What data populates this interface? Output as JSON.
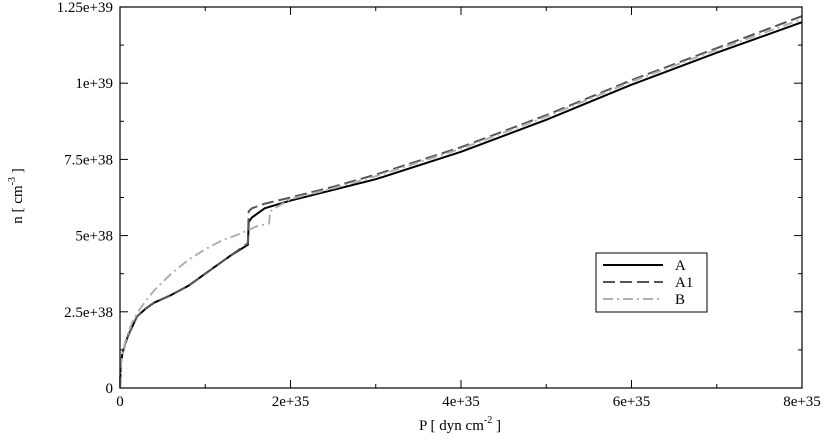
{
  "chart_data": {
    "type": "line",
    "title": "",
    "xlabel": {
      "prefix": "P [ dyn cm",
      "sup": "-2",
      "suffix": " ]"
    },
    "ylabel": {
      "prefix": "n [ cm",
      "sup": "-3",
      "suffix": " ]"
    },
    "xlim": [
      0,
      8e+35
    ],
    "ylim": [
      0,
      1.25e+39
    ],
    "x_ticks": [
      {
        "value": 0,
        "label": "0"
      },
      {
        "value": 2e+35,
        "label": "2e+35"
      },
      {
        "value": 4e+35,
        "label": "4e+35"
      },
      {
        "value": 6e+35,
        "label": "6e+35"
      },
      {
        "value": 8e+35,
        "label": "8e+35"
      }
    ],
    "y_ticks": [
      {
        "value": 0,
        "label": "0"
      },
      {
        "value": 2.5e+38,
        "label": "2.5e+38"
      },
      {
        "value": 5e+38,
        "label": "5e+38"
      },
      {
        "value": 7.5e+38,
        "label": "7.5e+38"
      },
      {
        "value": 1e+39,
        "label": "1e+39"
      },
      {
        "value": 1.25e+39,
        "label": "1.25e+39"
      }
    ],
    "grid": false,
    "legend_position": "right-middle",
    "series": [
      {
        "name": "A",
        "color": "#000000",
        "dash": "solid",
        "points": [
          [
            0,
            0
          ],
          [
            1e+33,
            8e+37
          ],
          [
            3e+33,
            1.15e+38
          ],
          [
            6e+33,
            1.45e+38
          ],
          [
            1e+34,
            1.75e+38
          ],
          [
            1.5e+34,
            2.05e+38
          ],
          [
            2e+34,
            2.35e+38
          ],
          [
            3e+34,
            2.6e+38
          ],
          [
            4e+34,
            2.8e+38
          ],
          [
            6e+34,
            3.05e+38
          ],
          [
            8e+34,
            3.35e+38
          ],
          [
            1.1e+35,
            3.95e+38
          ],
          [
            1.3e+35,
            4.35e+38
          ],
          [
            1.5e+35,
            4.7e+38
          ],
          [
            1.51e+35,
            5.45e+38
          ],
          [
            1.55e+35,
            5.6e+38
          ],
          [
            1.7e+35,
            5.9e+38
          ],
          [
            2e+35,
            6.15e+38
          ],
          [
            2.5e+35,
            6.5e+38
          ],
          [
            3e+35,
            6.85e+38
          ],
          [
            4e+35,
            7.75e+38
          ],
          [
            5e+35,
            8.8e+38
          ],
          [
            6e+35,
            9.95e+38
          ],
          [
            7e+35,
            1.1e+39
          ],
          [
            8e+35,
            1.2e+39
          ]
        ]
      },
      {
        "name": "A1",
        "color": "#555555",
        "dash": "dashed",
        "points": [
          [
            0,
            0
          ],
          [
            1e+33,
            8e+37
          ],
          [
            3e+33,
            1.15e+38
          ],
          [
            6e+33,
            1.45e+38
          ],
          [
            1e+34,
            1.75e+38
          ],
          [
            1.5e+34,
            2.05e+38
          ],
          [
            2e+34,
            2.35e+38
          ],
          [
            3e+34,
            2.6e+38
          ],
          [
            4e+34,
            2.8e+38
          ],
          [
            6e+34,
            3.05e+38
          ],
          [
            8e+34,
            3.35e+38
          ],
          [
            1.1e+35,
            3.95e+38
          ],
          [
            1.3e+35,
            4.35e+38
          ],
          [
            1.5e+35,
            4.75e+38
          ],
          [
            1.51e+35,
            5.8e+38
          ],
          [
            1.55e+35,
            5.9e+38
          ],
          [
            1.7e+35,
            6.05e+38
          ],
          [
            2e+35,
            6.25e+38
          ],
          [
            2.5e+35,
            6.6e+38
          ],
          [
            3e+35,
            7e+38
          ],
          [
            4e+35,
            7.9e+38
          ],
          [
            5e+35,
            8.95e+38
          ],
          [
            6e+35,
            1.01e+39
          ],
          [
            7e+35,
            1.115e+39
          ],
          [
            8e+35,
            1.22e+39
          ]
        ]
      },
      {
        "name": "B",
        "color": "#b0b0b0",
        "dash": "dash-dot",
        "points": [
          [
            0,
            0
          ],
          [
            1e+33,
            8e+37
          ],
          [
            3e+33,
            1.15e+38
          ],
          [
            6e+33,
            1.5e+38
          ],
          [
            1e+34,
            1.85e+38
          ],
          [
            1.5e+34,
            2.2e+38
          ],
          [
            2e+34,
            2.45e+38
          ],
          [
            3e+34,
            2.85e+38
          ],
          [
            4e+34,
            3.2e+38
          ],
          [
            6e+34,
            3.75e+38
          ],
          [
            8e+34,
            4.2e+38
          ],
          [
            1e+35,
            4.55e+38
          ],
          [
            1.2e+35,
            4.85e+38
          ],
          [
            1.4e+35,
            5.05e+38
          ],
          [
            1.6e+35,
            5.3e+38
          ],
          [
            1.75e+35,
            5.4e+38
          ],
          [
            1.76e+35,
            5.8e+38
          ],
          [
            2e+35,
            6.2e+38
          ],
          [
            2.5e+35,
            6.55e+38
          ],
          [
            3e+35,
            6.95e+38
          ],
          [
            4e+35,
            7.85e+38
          ],
          [
            5e+35,
            8.9e+38
          ],
          [
            6e+35,
            1.005e+39
          ],
          [
            7e+35,
            1.11e+39
          ],
          [
            8e+35,
            1.21e+39
          ]
        ]
      }
    ]
  }
}
